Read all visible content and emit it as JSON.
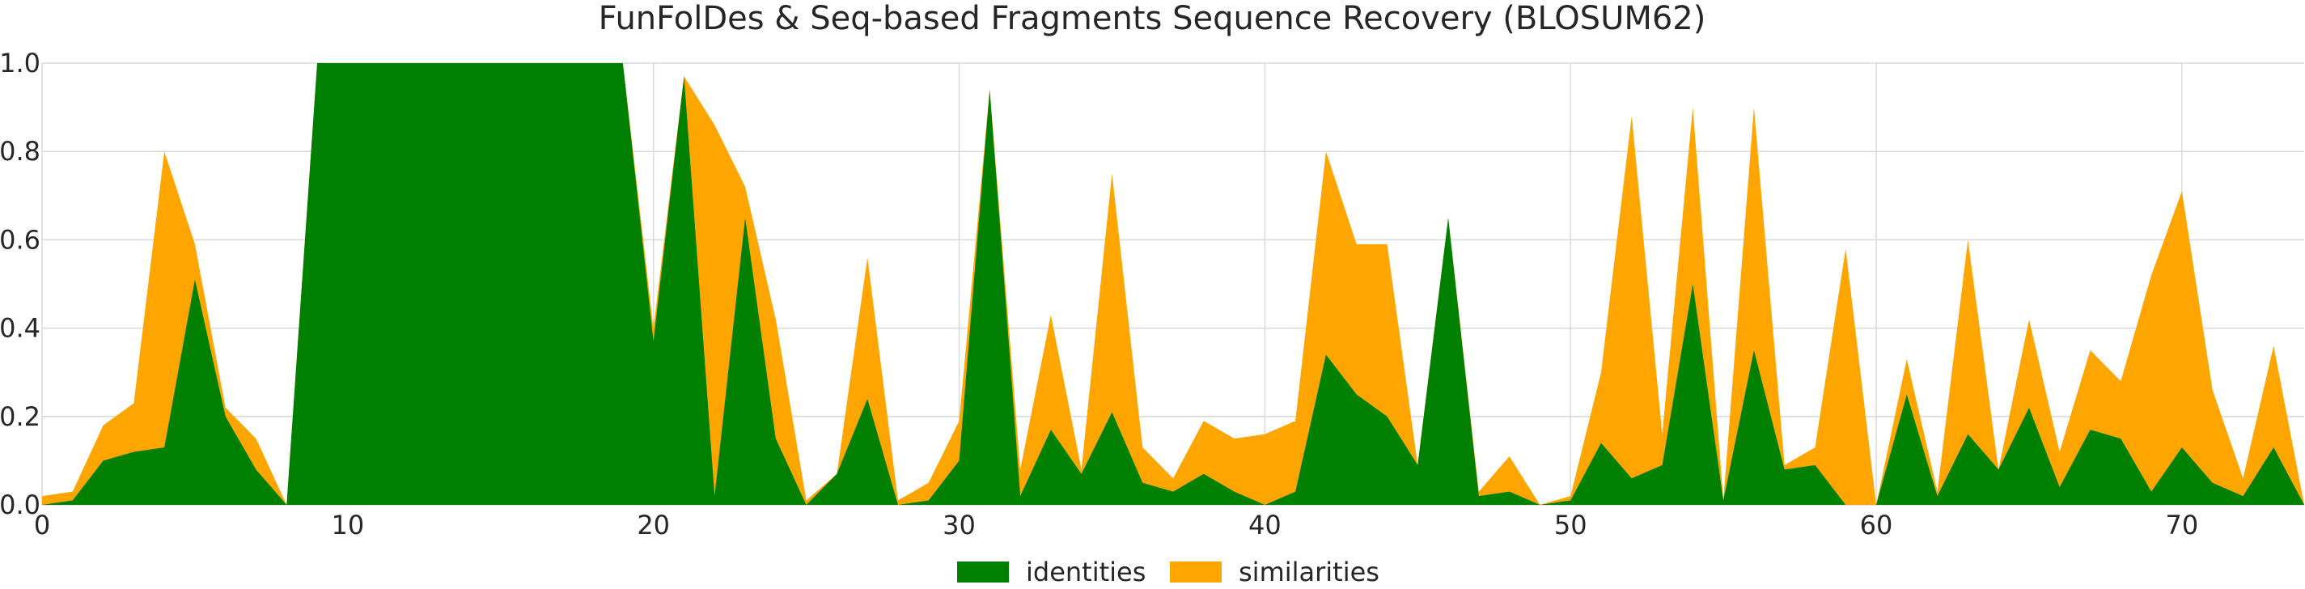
{
  "chart_data": {
    "type": "area",
    "title": "FunFolDes & Seq-based Fragments Sequence Recovery (BLOSUM62)",
    "xlabel": "",
    "ylabel": "",
    "xlim": [
      0,
      74
    ],
    "ylim": [
      0,
      1.0
    ],
    "x_ticks": [
      0,
      10,
      20,
      30,
      40,
      50,
      60,
      70
    ],
    "y_ticks": [
      "0.0",
      "0.2",
      "0.4",
      "0.6",
      "0.8",
      "1.0"
    ],
    "grid": true,
    "legend_position": "bottom-center",
    "x": [
      0,
      1,
      2,
      3,
      4,
      5,
      6,
      7,
      8,
      9,
      10,
      11,
      12,
      13,
      14,
      15,
      16,
      17,
      18,
      19,
      20,
      21,
      22,
      23,
      24,
      25,
      26,
      27,
      28,
      29,
      30,
      31,
      32,
      33,
      34,
      35,
      36,
      37,
      38,
      39,
      40,
      41,
      42,
      43,
      44,
      45,
      46,
      47,
      48,
      49,
      50,
      51,
      52,
      53,
      54,
      55,
      56,
      57,
      58,
      59,
      60,
      61,
      62,
      63,
      64,
      65,
      66,
      67,
      68,
      69,
      70,
      71,
      72,
      73,
      74
    ],
    "series": [
      {
        "name": "similarities",
        "color": "#ffa500",
        "values": [
          0.02,
          0.03,
          0.18,
          0.23,
          0.8,
          0.59,
          0.22,
          0.15,
          0.0,
          1.0,
          1.0,
          1.0,
          1.0,
          1.0,
          1.0,
          1.0,
          1.0,
          1.0,
          1.0,
          1.0,
          0.4,
          0.97,
          0.86,
          0.72,
          0.42,
          0.01,
          0.07,
          0.56,
          0.01,
          0.05,
          0.19,
          0.94,
          0.08,
          0.43,
          0.08,
          0.75,
          0.13,
          0.06,
          0.19,
          0.15,
          0.16,
          0.19,
          0.8,
          0.59,
          0.59,
          0.09,
          0.65,
          0.03,
          0.11,
          0.0,
          0.02,
          0.3,
          0.88,
          0.16,
          0.9,
          0.01,
          0.9,
          0.09,
          0.13,
          0.58,
          0.0,
          0.33,
          0.03,
          0.6,
          0.08,
          0.42,
          0.12,
          0.35,
          0.28,
          0.52,
          0.71,
          0.26,
          0.06,
          0.36,
          0.0
        ]
      },
      {
        "name": "identities",
        "color": "#008000",
        "values": [
          0.0,
          0.01,
          0.1,
          0.12,
          0.13,
          0.51,
          0.2,
          0.08,
          0.0,
          1.0,
          1.0,
          1.0,
          1.0,
          1.0,
          1.0,
          1.0,
          1.0,
          1.0,
          1.0,
          1.0,
          0.37,
          0.97,
          0.02,
          0.65,
          0.15,
          0.0,
          0.07,
          0.24,
          0.0,
          0.01,
          0.1,
          0.94,
          0.02,
          0.17,
          0.07,
          0.21,
          0.05,
          0.03,
          0.07,
          0.03,
          0.0,
          0.03,
          0.34,
          0.25,
          0.2,
          0.09,
          0.65,
          0.02,
          0.03,
          0.0,
          0.01,
          0.14,
          0.06,
          0.09,
          0.5,
          0.01,
          0.35,
          0.08,
          0.09,
          0.0,
          0.0,
          0.25,
          0.02,
          0.16,
          0.08,
          0.22,
          0.04,
          0.17,
          0.15,
          0.03,
          0.13,
          0.05,
          0.02,
          0.13,
          0.0
        ]
      }
    ],
    "legend": [
      {
        "name": "identities",
        "color": "#008000"
      },
      {
        "name": "similarities",
        "color": "#ffa500"
      }
    ]
  }
}
